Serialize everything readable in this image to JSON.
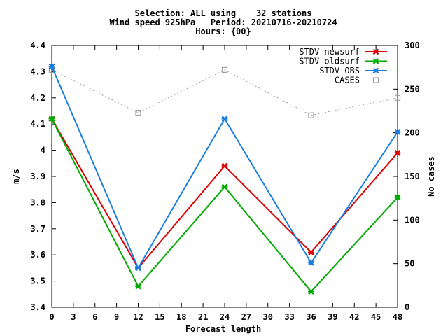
{
  "chart_data": {
    "type": "line",
    "title_lines": [
      "Selection: ALL using    32 stations",
      "Wind speed 925hPa   Period: 20210716-20210724",
      "Hours: {00}"
    ],
    "xlabel": "Forecast length",
    "ylabel": "m/s",
    "y2label": "No cases",
    "x_ticks": [
      0,
      3,
      6,
      9,
      12,
      15,
      18,
      21,
      24,
      27,
      30,
      33,
      36,
      39,
      42,
      45,
      48
    ],
    "y_ticks": [
      3.4,
      3.5,
      3.6,
      3.7,
      3.8,
      3.9,
      4,
      4.1,
      4.2,
      4.3,
      4.4
    ],
    "y2_ticks": [
      0,
      50,
      100,
      150,
      200,
      250,
      300
    ],
    "xlim": [
      0,
      48
    ],
    "ylim": [
      3.4,
      4.4
    ],
    "y2lim": [
      0,
      300
    ],
    "grid": false,
    "legend_position": "top-right",
    "x": [
      0,
      12,
      24,
      36,
      48
    ],
    "series": [
      {
        "name": "STDV newsurf",
        "axis": "left",
        "color": "#dd0000",
        "marker": "x",
        "dashed": false,
        "values": [
          4.12,
          3.55,
          3.94,
          3.61,
          3.99
        ]
      },
      {
        "name": "STDV oldsurf",
        "axis": "left",
        "color": "#00aa00",
        "marker": "x",
        "dashed": false,
        "values": [
          4.12,
          3.48,
          3.86,
          3.46,
          3.82
        ]
      },
      {
        "name": "STDV OBS",
        "axis": "left",
        "color": "#1a7fe0",
        "marker": "x",
        "dashed": false,
        "values": [
          4.32,
          3.55,
          4.12,
          3.57,
          4.07
        ]
      },
      {
        "name": "CASES",
        "axis": "right",
        "color": "#a0a0a0",
        "marker": "square",
        "dashed": true,
        "values": [
          272,
          223,
          272,
          220,
          240
        ]
      }
    ]
  }
}
